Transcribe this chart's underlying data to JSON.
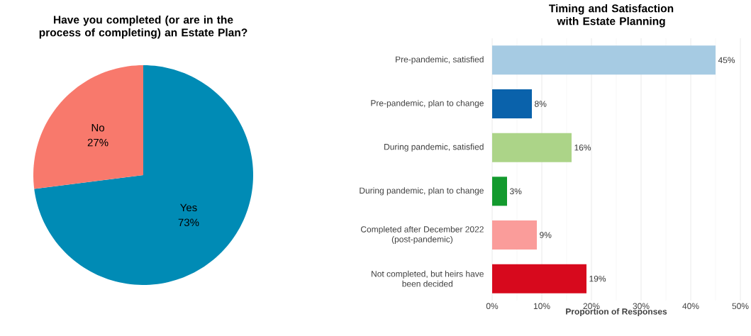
{
  "chart_data": [
    {
      "type": "pie",
      "title": "Have you completed (or are in the process of completing) an Estate Plan?",
      "categories": [
        "Yes",
        "No"
      ],
      "values": [
        73,
        27
      ],
      "value_labels": [
        "73%",
        "27%"
      ],
      "colors": [
        "#008bb5",
        "#f8796c"
      ]
    },
    {
      "type": "bar",
      "orientation": "horizontal",
      "title": "Timing and Satisfaction with Estate Planning",
      "xlabel": "Proportion of Responses",
      "categories": [
        "Pre-pandemic, satisfied",
        "Pre-pandemic, plan to change",
        "During pandemic, satisfied",
        "During pandemic, plan to change",
        "Completed after December 2022 (post-pandemic)",
        "Not completed, but heirs have been decided"
      ],
      "values": [
        45,
        8,
        16,
        3,
        9,
        19
      ],
      "value_labels": [
        "45%",
        "8%",
        "16%",
        "3%",
        "9%",
        "19%"
      ],
      "colors": [
        "#a6cbe3",
        "#0a62ab",
        "#acd488",
        "#139a2e",
        "#fa9c9a",
        "#d7091d"
      ],
      "xlim": [
        0,
        50
      ],
      "xticks": [
        {
          "value": 0,
          "label": "0%"
        },
        {
          "value": 10,
          "label": "10%"
        },
        {
          "value": 20,
          "label": "20%"
        },
        {
          "value": 30,
          "label": "30%"
        },
        {
          "value": 40,
          "label": "40%"
        },
        {
          "value": 50,
          "label": "50%"
        }
      ],
      "grid": "x"
    }
  ]
}
